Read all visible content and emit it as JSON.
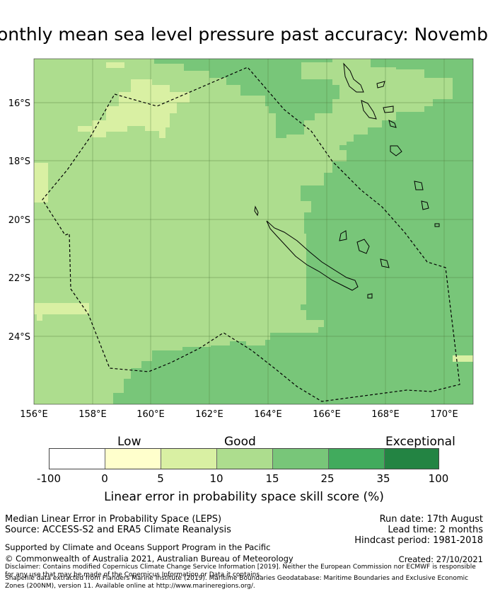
{
  "title": "Monthly mean sea level pressure past accuracy: November",
  "map": {
    "lon_ticks": [
      "156°E",
      "158°E",
      "160°E",
      "162°E",
      "164°E",
      "166°E",
      "168°E",
      "170°E"
    ],
    "lat_ticks": [
      "16°S",
      "18°S",
      "20°S",
      "22°S",
      "24°S"
    ],
    "colors": {
      "low_light": "#d9f0a3",
      "good": "#addd8e",
      "good_plus": "#78c679",
      "very_good": "#41ab5d",
      "exceptional": "#238443",
      "pale": "#ffffcc"
    }
  },
  "colorbar": {
    "category_labels": {
      "low": "Low",
      "good": "Good",
      "exceptional": "Exceptional"
    },
    "bins": [
      {
        "color": "#ffffff"
      },
      {
        "color": "#ffffcc"
      },
      {
        "color": "#d9f0a3"
      },
      {
        "color": "#addd8e"
      },
      {
        "color": "#78c679"
      },
      {
        "color": "#41ab5d"
      },
      {
        "color": "#238443"
      }
    ],
    "ticks": [
      "-100",
      "0",
      "5",
      "10",
      "15",
      "25",
      "35",
      "100"
    ],
    "title": "Linear error in probability space skill score (%)"
  },
  "info": {
    "metric": "Median Linear Error in Probability Space (LEPS)",
    "source": "Source: ACCESS-S2 and ERA5 Climate Reanalysis",
    "run_date": "Run date: 17th August",
    "lead_time": "Lead time: 2 months",
    "hindcast": "Hindcast period: 1981-2018",
    "supported": "Supported by Climate and Oceans Support Program in the Pacific",
    "copyright": "© Commonwealth of Australia 2021, Australian Bureau of Meteorology",
    "created": "Created: 27/10/2021",
    "disclaimer": "Disclaimer: Contains modified Copernicus Climate Change Service Information [2019]. Neither the European Commission nor ECMWF is responsible for any use that may be made of the Copernicus Information or Data it contains.",
    "shapefile": "Shapefile data extracted from Flanders Marine Institute (2019). Maritime Boundaries Geodatabase: Maritime Boundaries and Exclusive Economic Zones (200NM), version 11. Available online at http://www.marineregions.org/."
  }
}
